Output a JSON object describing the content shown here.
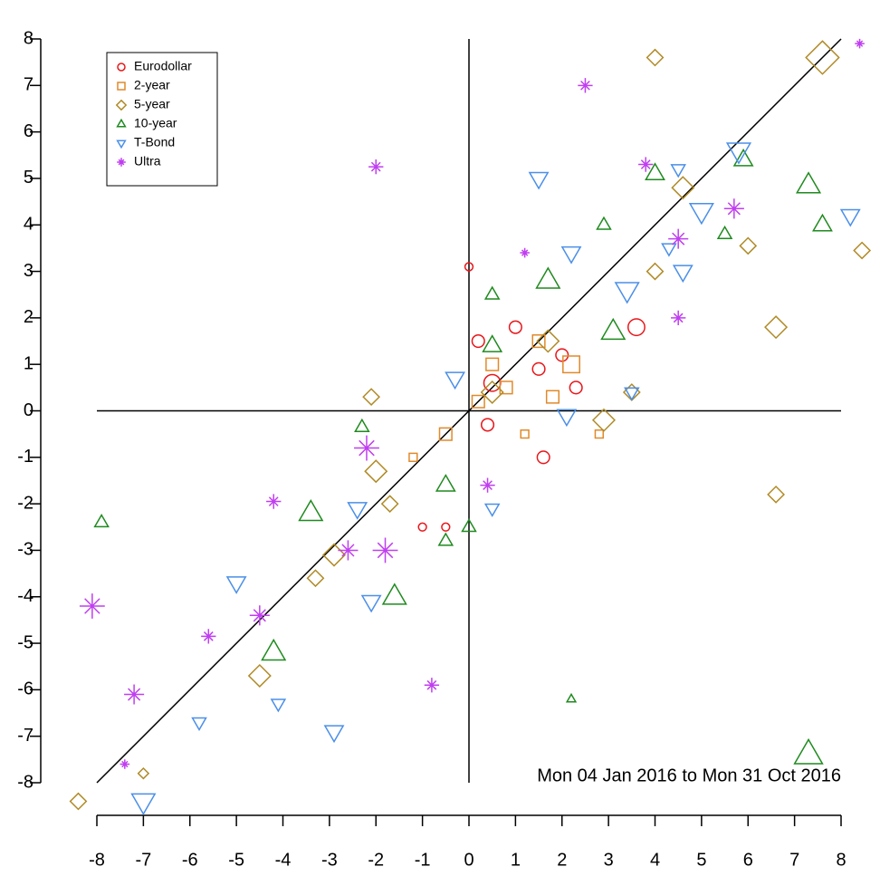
{
  "chart_data": {
    "type": "scatter",
    "annotation": "Mon 04 Jan 2016 to Mon 31 Oct 2016",
    "xlim": [
      -8,
      8
    ],
    "ylim": [
      -8,
      8
    ],
    "xticks": [
      -8,
      -7,
      -6,
      -5,
      -4,
      -3,
      -2,
      -1,
      0,
      1,
      2,
      3,
      4,
      5,
      6,
      7,
      8
    ],
    "yticks": [
      -8,
      -7,
      -6,
      -5,
      -4,
      -3,
      -2,
      -1,
      0,
      1,
      2,
      3,
      4,
      5,
      6,
      7,
      8
    ],
    "legend": "top-left",
    "series": [
      {
        "name": "Eurodollar",
        "color": "#e8161a",
        "marker": "circle",
        "x": [
          0.2,
          1.6,
          3.6,
          0.5,
          1.0,
          2.3,
          -1.0,
          0.4,
          0.0,
          1.5,
          -0.5,
          2.0
        ],
        "values": [
          1.5,
          -1.0,
          1.8,
          0.6,
          1.8,
          0.5,
          -2.5,
          -0.3,
          3.1,
          0.9,
          -2.5,
          1.2
        ],
        "sizes": [
          2,
          2,
          3,
          3,
          2,
          2,
          1,
          2,
          1,
          2,
          1,
          2
        ]
      },
      {
        "name": "2-year",
        "color": "#e08a2a",
        "marker": "square",
        "x": [
          0.2,
          0.8,
          2.2,
          1.5,
          -0.5,
          1.2,
          2.8,
          0.5,
          -1.2,
          1.8
        ],
        "values": [
          0.2,
          0.5,
          1.0,
          1.5,
          -0.5,
          -0.5,
          -0.5,
          1.0,
          -1.0,
          0.3
        ],
        "sizes": [
          2,
          2,
          3,
          2,
          2,
          1,
          1,
          2,
          1,
          2
        ]
      },
      {
        "name": "5-year",
        "color": "#b08a26",
        "marker": "diamond",
        "x": [
          7.6,
          4.0,
          8.45,
          -8.4,
          6.6,
          6.6,
          4.6,
          6.0,
          -4.5,
          -2.9,
          -2.0,
          -2.1,
          2.9,
          3.5,
          4.0,
          -1.7,
          -7.0,
          1.7,
          0.5,
          -3.3
        ],
        "values": [
          7.6,
          7.6,
          3.45,
          -8.4,
          1.8,
          -1.8,
          4.8,
          3.55,
          -5.7,
          -3.1,
          -1.3,
          0.3,
          -0.2,
          0.4,
          3.0,
          -2.0,
          -7.8,
          1.5,
          0.4,
          -3.6
        ],
        "sizes": [
          5,
          2,
          2,
          2,
          3,
          2,
          3,
          2,
          3,
          3,
          3,
          2,
          3,
          2,
          2,
          2,
          1,
          3,
          3,
          2
        ]
      },
      {
        "name": "10-year",
        "color": "#1f8a1f",
        "marker": "triangle-up",
        "x": [
          7.3,
          7.3,
          5.9,
          7.6,
          -7.9,
          -4.2,
          -3.4,
          -1.6,
          3.1,
          1.7,
          0.5,
          -0.5,
          4.0,
          2.9,
          -0.5,
          0.5,
          -2.3,
          2.2,
          5.5,
          0.0
        ],
        "values": [
          -7.4,
          4.85,
          5.4,
          4.0,
          -2.4,
          -5.2,
          -2.2,
          -4.0,
          1.7,
          2.8,
          1.4,
          -1.6,
          5.1,
          4.0,
          -2.8,
          2.5,
          -0.35,
          -6.2,
          3.8,
          -2.5
        ],
        "sizes": [
          5,
          4,
          3,
          3,
          2,
          4,
          4,
          4,
          4,
          4,
          3,
          3,
          3,
          2,
          2,
          2,
          2,
          1,
          2,
          2
        ]
      },
      {
        "name": "T-Bond",
        "color": "#4b8fe8",
        "marker": "triangle-down",
        "x": [
          -7.0,
          5.8,
          5.0,
          8.2,
          -2.1,
          -2.9,
          -5.0,
          -5.8,
          -4.1,
          1.5,
          3.4,
          4.6,
          2.2,
          4.5,
          0.5,
          -2.4,
          3.5,
          -0.3,
          2.1,
          4.3
        ],
        "values": [
          -8.4,
          5.6,
          4.3,
          4.2,
          -4.1,
          -6.9,
          -3.7,
          -6.7,
          -6.3,
          5.0,
          2.6,
          3.0,
          3.4,
          5.2,
          -2.1,
          -2.1,
          0.4,
          0.7,
          -0.1,
          3.5
        ],
        "sizes": [
          4,
          4,
          4,
          3,
          3,
          3,
          3,
          2,
          2,
          3,
          4,
          3,
          3,
          2,
          2,
          3,
          2,
          3,
          3,
          2
        ]
      },
      {
        "name": "Ultra",
        "color": "#c03ef0",
        "marker": "asterisk",
        "x": [
          -8.1,
          -7.2,
          -4.5,
          -5.6,
          -4.2,
          -2.0,
          2.5,
          5.7,
          4.5,
          -1.8,
          -2.6,
          -2.2,
          0.4,
          -0.8,
          4.5,
          3.8,
          1.2,
          -7.4,
          8.4
        ],
        "values": [
          -4.2,
          -6.1,
          -4.4,
          -4.85,
          -1.95,
          5.25,
          7.0,
          4.35,
          3.7,
          -3.0,
          -3.0,
          -0.8,
          -1.6,
          -5.9,
          2.0,
          5.3,
          3.4,
          -7.6,
          7.9
        ],
        "sizes": [
          4,
          3,
          3,
          2,
          2,
          2,
          2,
          3,
          3,
          4,
          3,
          4,
          2,
          2,
          2,
          2,
          1,
          1,
          1
        ]
      }
    ]
  }
}
